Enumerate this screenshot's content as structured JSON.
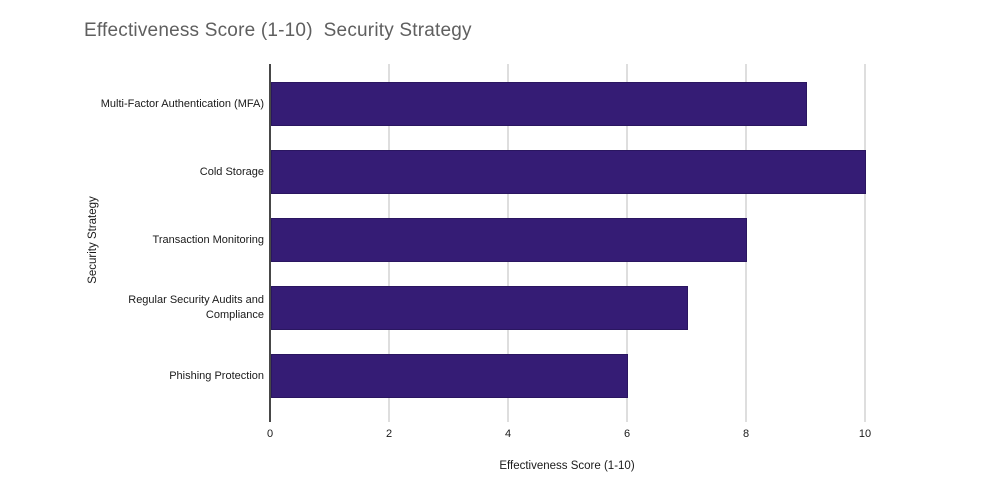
{
  "title": "Effectiveness Score (1-10)  Security Strategy",
  "colors": {
    "bar": "#351c75",
    "bar_border": "#2a1660",
    "title_text": "#5f5f5f",
    "axis_line": "#474747",
    "gridline": "#dedede",
    "label_text": "#1a1a1a"
  },
  "chart_data": {
    "type": "bar",
    "orientation": "horizontal",
    "title": "Effectiveness Score (1-10)  Security Strategy",
    "categories": [
      "Multi-Factor Authentication (MFA)",
      "Cold Storage",
      "Transaction Monitoring",
      "Regular Security Audits and Compliance",
      "Phishing Protection"
    ],
    "values": [
      9,
      10,
      8,
      7,
      6
    ],
    "xlabel": "Effectiveness Score (1-10)",
    "ylabel": "Security Strategy",
    "xlim": [
      0,
      10
    ],
    "xticks": [
      0,
      2,
      4,
      6,
      8,
      10
    ],
    "grid": true,
    "legend": false
  }
}
